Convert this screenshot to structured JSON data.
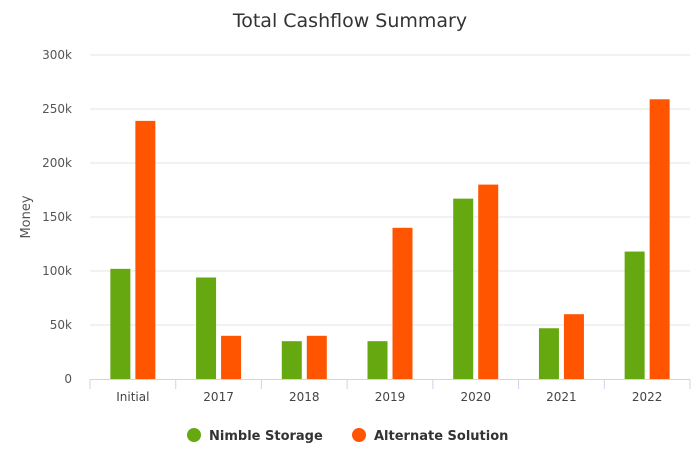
{
  "chart_data": {
    "type": "bar",
    "title": "Total Cashflow Summary",
    "xlabel": "",
    "ylabel": "Money",
    "categories": [
      "Initial",
      "2017",
      "2018",
      "2019",
      "2020",
      "2021",
      "2022"
    ],
    "series": [
      {
        "name": "Nimble Storage",
        "color": "#66a80f",
        "values": [
          102000,
          94000,
          35000,
          35000,
          167000,
          47000,
          118000
        ]
      },
      {
        "name": "Alternate Solution",
        "color": "#ff5500",
        "values": [
          239000,
          40000,
          40000,
          140000,
          180000,
          60000,
          259000
        ]
      }
    ],
    "ylim": [
      0,
      300000
    ],
    "yticks": [
      0,
      50000,
      100000,
      150000,
      200000,
      250000,
      300000
    ],
    "ytick_labels": [
      "0",
      "50k",
      "100k",
      "150k",
      "200k",
      "250k",
      "300k"
    ],
    "grid": true,
    "legend_position": "bottom-center"
  }
}
